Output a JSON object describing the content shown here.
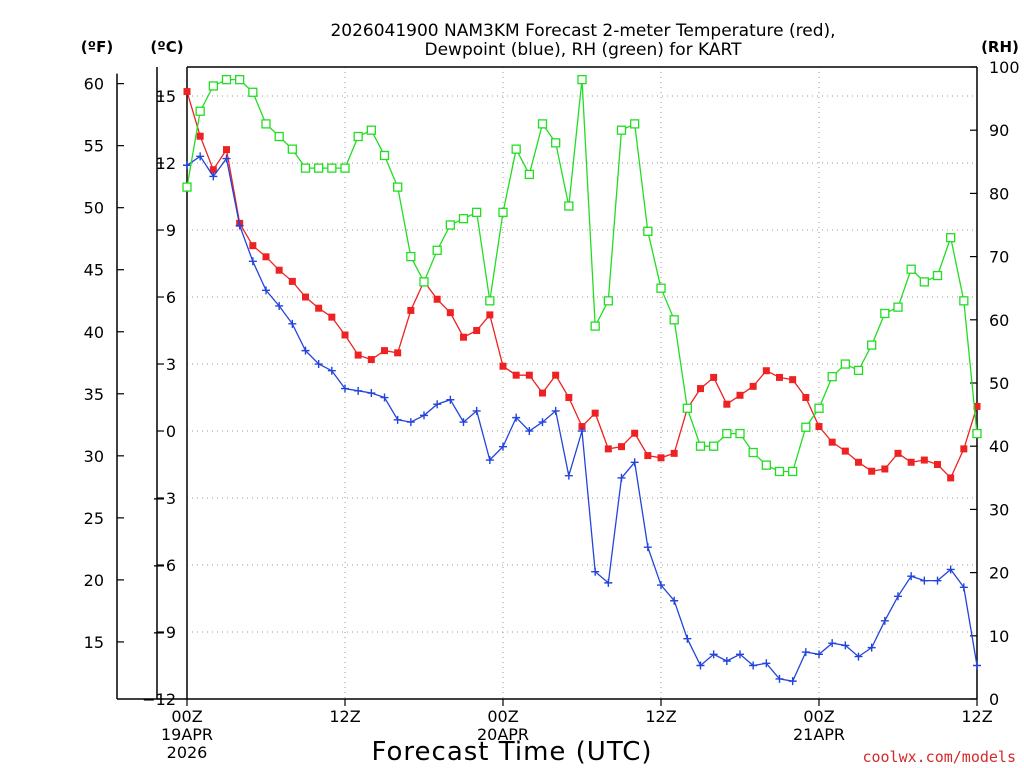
{
  "chart_data": {
    "type": "line",
    "title_line1": "2026041900 NAM3KM Forecast 2-meter Temperature (red),",
    "title_line2": "Dewpoint (blue), RH (green) for KART",
    "xlabel": "Forecast Time (UTC)",
    "credit": "coolwx.com/models",
    "y_left_f_label": "(ºF)",
    "y_left_c_label": "(ºC)",
    "y_right_label": "(RH)",
    "xlim_hours": [
      0,
      60
    ],
    "ylim_c": [
      -12,
      16.3
    ],
    "ylim_rh": [
      0,
      100
    ],
    "x_ticks": [
      {
        "hour": 0,
        "lines": [
          "00Z",
          "19APR",
          "2026"
        ]
      },
      {
        "hour": 12,
        "lines": [
          "12Z"
        ]
      },
      {
        "hour": 24,
        "lines": [
          "00Z",
          "20APR"
        ]
      },
      {
        "hour": 36,
        "lines": [
          "12Z"
        ]
      },
      {
        "hour": 48,
        "lines": [
          "00Z",
          "21APR"
        ]
      },
      {
        "hour": 60,
        "lines": [
          "12Z"
        ]
      }
    ],
    "y_ticks_c": [
      {
        "value": 15,
        "label": "15"
      },
      {
        "value": 12,
        "label": "12"
      },
      {
        "value": 9,
        "label": "9"
      },
      {
        "value": 6,
        "label": "6"
      },
      {
        "value": 3,
        "label": "3"
      },
      {
        "value": 0,
        "label": "0"
      },
      {
        "value": -3,
        "label": "−3"
      },
      {
        "value": -6,
        "label": "−6"
      },
      {
        "value": -9,
        "label": "−9"
      },
      {
        "value": -12,
        "label": "−12"
      }
    ],
    "y_ticks_f": [
      {
        "value": 60,
        "label": "60"
      },
      {
        "value": 55,
        "label": "55"
      },
      {
        "value": 50,
        "label": "50"
      },
      {
        "value": 45,
        "label": "45"
      },
      {
        "value": 40,
        "label": "40"
      },
      {
        "value": 35,
        "label": "35"
      },
      {
        "value": 30,
        "label": "30"
      },
      {
        "value": 25,
        "label": "25"
      },
      {
        "value": 20,
        "label": "20"
      },
      {
        "value": 15,
        "label": "15"
      }
    ],
    "y_ticks_rh": [
      {
        "value": 100,
        "label": "100"
      },
      {
        "value": 90,
        "label": "90"
      },
      {
        "value": 80,
        "label": "80"
      },
      {
        "value": 70,
        "label": "70"
      },
      {
        "value": 60,
        "label": "60"
      },
      {
        "value": 50,
        "label": "50"
      },
      {
        "value": 40,
        "label": "40"
      },
      {
        "value": 30,
        "label": "30"
      },
      {
        "value": 20,
        "label": "20"
      },
      {
        "value": 10,
        "label": "10"
      },
      {
        "value": 0,
        "label": "0"
      }
    ],
    "hours": [
      0,
      1,
      2,
      3,
      4,
      5,
      6,
      7,
      8,
      9,
      10,
      11,
      12,
      13,
      14,
      15,
      16,
      17,
      18,
      19,
      20,
      21,
      22,
      23,
      24,
      25,
      26,
      27,
      28,
      29,
      30,
      31,
      32,
      33,
      34,
      35,
      36,
      37,
      38,
      39,
      40,
      41,
      42,
      43,
      44,
      45,
      46,
      47,
      48,
      49,
      50,
      51,
      52,
      53,
      54,
      55,
      56,
      57,
      58,
      59,
      60
    ],
    "series": [
      {
        "name": "Temperature (°C)",
        "color": "#ee2222",
        "marker": "filled-square",
        "axis": "celsius",
        "values": [
          15.2,
          13.2,
          11.7,
          12.6,
          9.3,
          8.3,
          7.8,
          7.2,
          6.7,
          6.0,
          5.5,
          5.1,
          4.3,
          3.4,
          3.2,
          3.6,
          3.5,
          5.4,
          6.7,
          5.9,
          5.3,
          4.2,
          4.5,
          5.2,
          2.9,
          2.5,
          2.5,
          1.7,
          2.5,
          1.5,
          0.2,
          0.8,
          -0.8,
          -0.7,
          -0.1,
          -1.1,
          -1.2,
          -1.0,
          1.0,
          1.9,
          2.4,
          1.2,
          1.6,
          2.0,
          2.7,
          2.4,
          2.3,
          1.5,
          0.2,
          -0.5,
          -0.9,
          -1.4,
          -1.8,
          -1.7,
          -1.0,
          -1.4,
          -1.3,
          -1.5,
          -2.1,
          -0.8,
          1.1
        ]
      },
      {
        "name": "Dewpoint (°C)",
        "color": "#2244dd",
        "marker": "plus",
        "axis": "celsius",
        "values": [
          11.9,
          12.3,
          11.4,
          12.2,
          9.2,
          7.6,
          6.3,
          5.6,
          4.8,
          3.6,
          3.0,
          2.7,
          1.9,
          1.8,
          1.7,
          1.5,
          0.5,
          0.4,
          0.7,
          1.2,
          1.4,
          0.4,
          0.9,
          -1.3,
          -0.7,
          0.6,
          0.0,
          0.4,
          0.9,
          -2.0,
          0.0,
          -6.3,
          -6.8,
          -2.1,
          -1.4,
          -5.2,
          -6.9,
          -7.6,
          -9.3,
          -10.5,
          -10.0,
          -10.3,
          -10.0,
          -10.5,
          -10.4,
          -11.1,
          -11.2,
          -9.9,
          -10.0,
          -9.5,
          -9.6,
          -10.1,
          -9.7,
          -8.5,
          -7.4,
          -6.5,
          -6.7,
          -6.7,
          -6.2,
          -7.0,
          -10.5
        ]
      },
      {
        "name": "RH (%)",
        "color": "#22dd22",
        "marker": "open-square",
        "axis": "rh",
        "values": [
          81,
          93,
          97,
          98,
          98,
          96,
          91,
          89,
          87,
          84,
          84,
          84,
          84,
          89,
          90,
          86,
          81,
          70,
          66,
          71,
          75,
          76,
          77,
          63,
          77,
          87,
          83,
          91,
          88,
          78,
          98,
          59,
          63,
          90,
          91,
          74,
          65,
          60,
          46,
          40,
          40,
          42,
          42,
          39,
          37,
          36,
          36,
          43,
          46,
          51,
          53,
          52,
          56,
          61,
          62,
          68,
          66,
          67,
          73,
          63,
          42
        ]
      }
    ]
  }
}
